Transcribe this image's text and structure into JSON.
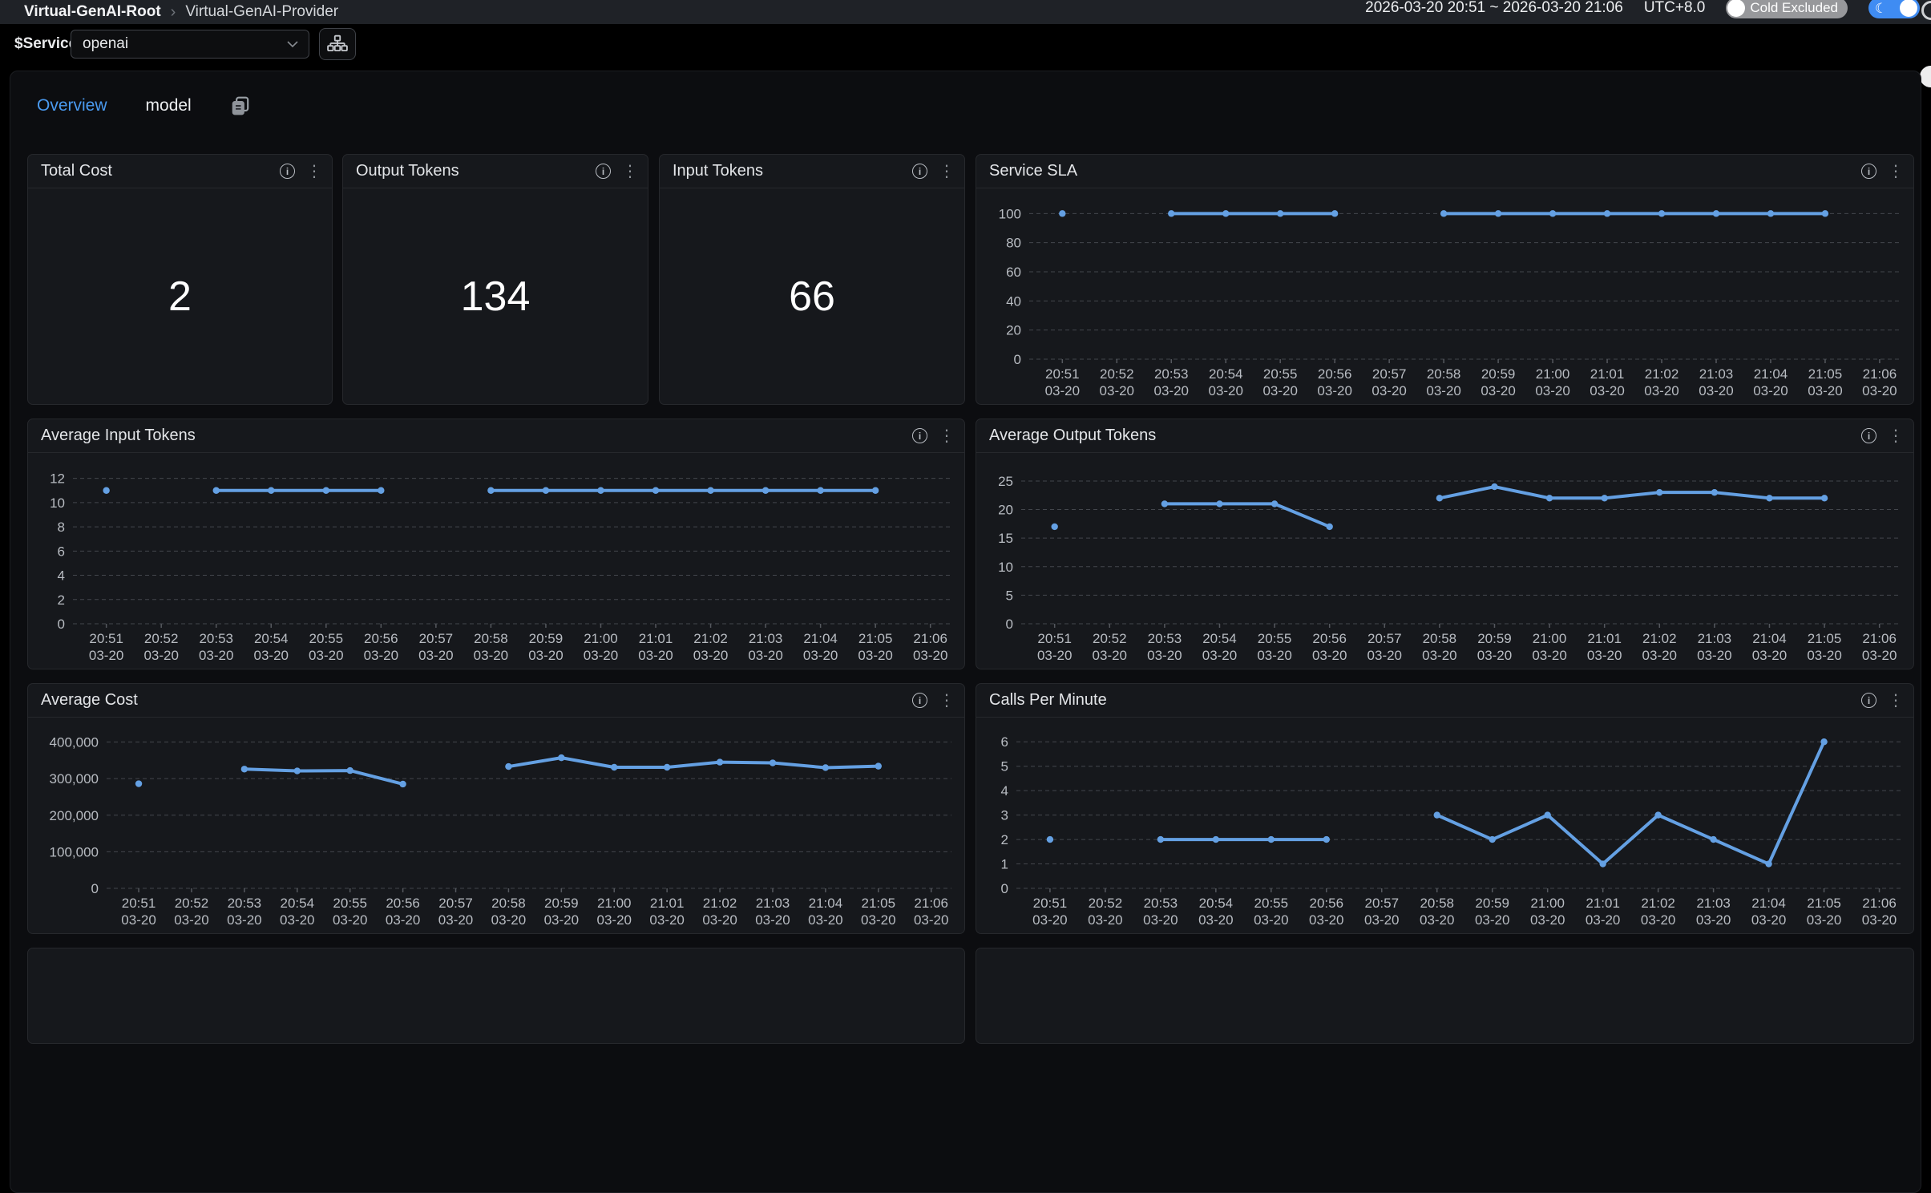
{
  "topbar": {
    "breadcrumb": {
      "root": "Virtual-GenAI-Root",
      "current": "Virtual-GenAI-Provider"
    },
    "time_range": "2026-03-20 20:51 ~ 2026-03-20 21:06",
    "timezone": "UTC+8.0",
    "cold_excluded_label": "Cold Excluded"
  },
  "filterbar": {
    "service_label": "$Service",
    "service_value": "openai"
  },
  "tabs": [
    {
      "label": "Overview",
      "active": true
    },
    {
      "label": "model",
      "active": false
    }
  ],
  "stats": [
    {
      "title": "Total Cost",
      "value": "2"
    },
    {
      "title": "Output Tokens",
      "value": "134"
    },
    {
      "title": "Input Tokens",
      "value": "66"
    }
  ],
  "icons": {
    "info": "i",
    "kebab": "⋮",
    "breadcrumb_separator": "›",
    "moon": "☾"
  },
  "colors": {
    "accent": "#4a9af0",
    "line": "#64a0e3",
    "toggle_on": "#3f8cf3",
    "toggle_off": "#97989b"
  },
  "chart_data": [
    {
      "id": "service-sla",
      "type": "line",
      "title": "Service SLA",
      "x": [
        "20:51",
        "20:52",
        "20:53",
        "20:54",
        "20:55",
        "20:56",
        "20:57",
        "20:58",
        "20:59",
        "21:00",
        "21:01",
        "21:02",
        "21:03",
        "21:04",
        "21:05",
        "21:06"
      ],
      "x_sub": "03-20",
      "values": [
        100,
        null,
        100,
        100,
        100,
        100,
        null,
        100,
        100,
        100,
        100,
        100,
        100,
        100,
        100,
        null
      ],
      "yticks": [
        0,
        20,
        40,
        60,
        80,
        100
      ],
      "ylim": [
        0,
        109
      ],
      "ylabel_width": 46,
      "grid": "dashed",
      "legend": "none"
    },
    {
      "id": "avg-input-tokens",
      "type": "line",
      "title": "Average Input Tokens",
      "x": [
        "20:51",
        "20:52",
        "20:53",
        "20:54",
        "20:55",
        "20:56",
        "20:57",
        "20:58",
        "20:59",
        "21:00",
        "21:01",
        "21:02",
        "21:03",
        "21:04",
        "21:05",
        "21:06"
      ],
      "x_sub": "03-20",
      "values": [
        11,
        null,
        11,
        11,
        11,
        11,
        null,
        11,
        11,
        11,
        11,
        11,
        11,
        11,
        11,
        null
      ],
      "yticks": [
        0,
        2,
        4,
        6,
        8,
        10,
        12
      ],
      "ylim": [
        0,
        13.1
      ],
      "ylabel_width": 36,
      "grid": "dashed",
      "legend": "none"
    },
    {
      "id": "avg-output-tokens",
      "type": "line",
      "title": "Average Output Tokens",
      "x": [
        "20:51",
        "20:52",
        "20:53",
        "20:54",
        "20:55",
        "20:56",
        "20:57",
        "20:58",
        "20:59",
        "21:00",
        "21:01",
        "21:02",
        "21:03",
        "21:04",
        "21:05",
        "21:06"
      ],
      "x_sub": "03-20",
      "values": [
        17,
        null,
        21,
        21,
        21,
        17,
        null,
        22,
        24,
        22,
        22,
        23,
        23,
        22,
        22,
        null
      ],
      "yticks": [
        0,
        5,
        10,
        15,
        20,
        25
      ],
      "ylim": [
        0,
        27.8
      ],
      "ylabel_width": 36,
      "grid": "dashed",
      "legend": "none"
    },
    {
      "id": "avg-cost",
      "type": "line",
      "title": "Average Cost",
      "x": [
        "20:51",
        "20:52",
        "20:53",
        "20:54",
        "20:55",
        "20:56",
        "20:57",
        "20:58",
        "20:59",
        "21:00",
        "21:01",
        "21:02",
        "21:03",
        "21:04",
        "21:05",
        "21:06"
      ],
      "x_sub": "03-20",
      "values": [
        286000,
        null,
        326000,
        321000,
        322000,
        285000,
        null,
        333000,
        357000,
        331000,
        331000,
        345000,
        343000,
        330000,
        334000,
        null
      ],
      "yticks": [
        0,
        100000,
        200000,
        300000,
        400000
      ],
      "ylim": [
        0,
        434000
      ],
      "ylabel_width": 78,
      "grid": "dashed",
      "legend": "none"
    },
    {
      "id": "calls-per-minute",
      "type": "line",
      "title": "Calls Per Minute",
      "x": [
        "20:51",
        "20:52",
        "20:53",
        "20:54",
        "20:55",
        "20:56",
        "20:57",
        "20:58",
        "20:59",
        "21:00",
        "21:01",
        "21:02",
        "21:03",
        "21:04",
        "21:05",
        "21:06"
      ],
      "x_sub": "03-20",
      "values": [
        2,
        null,
        2,
        2,
        2,
        2,
        null,
        3,
        2,
        3,
        1,
        3,
        2,
        1,
        6,
        null
      ],
      "yticks": [
        0,
        1,
        2,
        3,
        4,
        5,
        6
      ],
      "ylim": [
        0,
        6.5
      ],
      "ylabel_width": 30,
      "grid": "dashed",
      "legend": "none"
    }
  ]
}
